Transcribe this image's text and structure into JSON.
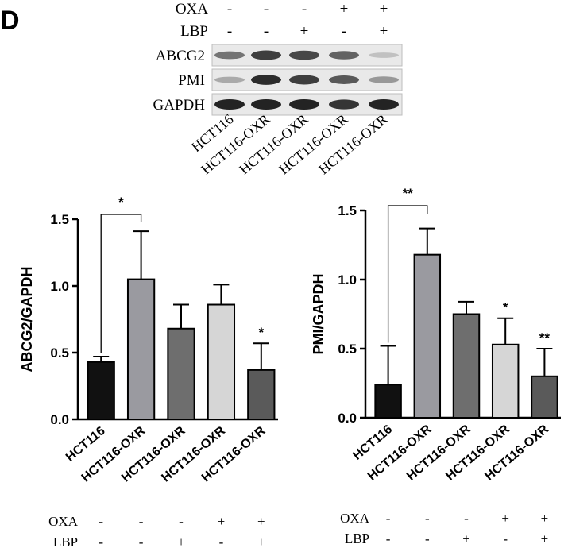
{
  "panel_label": "D",
  "blot": {
    "treatments": [
      {
        "name": "OXA",
        "signs": [
          "-",
          "-",
          "-",
          "+",
          "+"
        ]
      },
      {
        "name": "LBP",
        "signs": [
          "-",
          "-",
          "+",
          "-",
          "+"
        ]
      }
    ],
    "rows": [
      {
        "label": "ABCG2",
        "intensity": [
          0.55,
          0.85,
          0.8,
          0.65,
          0.12
        ]
      },
      {
        "label": "PMI",
        "intensity": [
          0.25,
          0.95,
          0.85,
          0.7,
          0.35
        ]
      },
      {
        "label": "GAPDH",
        "intensity": [
          1.0,
          1.0,
          1.0,
          0.9,
          1.0
        ]
      }
    ],
    "lanes": [
      "HCT116",
      "HCT116-OXR",
      "HCT116-OXR",
      "HCT116-OXR",
      "HCT116-OXR"
    ]
  },
  "chart_data": [
    {
      "type": "bar",
      "categories": [
        "HCT116",
        "HCT116-OXR",
        "HCT116-OXR",
        "HCT116-OXR",
        "HCT116-OXR"
      ],
      "values": [
        0.43,
        1.05,
        0.68,
        0.86,
        0.37
      ],
      "errors": [
        0.04,
        0.36,
        0.18,
        0.15,
        0.2
      ],
      "colors": [
        "#111111",
        "#9a9aa0",
        "#6e6e6e",
        "#d6d6d6",
        "#5a5a5a"
      ],
      "ylabel": "ABCG2/GAPDH",
      "ylim": [
        0,
        1.5
      ],
      "yticks": [
        "0.0",
        "0.5",
        "1.0",
        "1.5"
      ],
      "annotations": [
        {
          "text": "*",
          "type": "bracket",
          "from": 0,
          "to": 1
        },
        {
          "text": "*",
          "type": "above",
          "bar": 4
        }
      ],
      "treatments": [
        {
          "name": "OXA",
          "signs": [
            "-",
            "-",
            "-",
            "+",
            "+"
          ]
        },
        {
          "name": "LBP",
          "signs": [
            "-",
            "-",
            "+",
            "-",
            "+"
          ]
        }
      ]
    },
    {
      "type": "bar",
      "categories": [
        "HCT116",
        "HCT116-OXR",
        "HCT116-OXR",
        "HCT116-OXR",
        "HCT116-OXR"
      ],
      "values": [
        0.24,
        1.18,
        0.75,
        0.53,
        0.3
      ],
      "errors": [
        0.28,
        0.19,
        0.09,
        0.19,
        0.2
      ],
      "colors": [
        "#111111",
        "#9a9aa0",
        "#6e6e6e",
        "#d6d6d6",
        "#5a5a5a"
      ],
      "ylabel": "PMI/GAPDH",
      "ylim": [
        0,
        1.5
      ],
      "yticks": [
        "0.0",
        "0.5",
        "1.0",
        "1.5"
      ],
      "annotations": [
        {
          "text": "**",
          "type": "bracket",
          "from": 0,
          "to": 1
        },
        {
          "text": "*",
          "type": "above",
          "bar": 3
        },
        {
          "text": "**",
          "type": "above",
          "bar": 4
        }
      ],
      "treatments": [
        {
          "name": "OXA",
          "signs": [
            "-",
            "-",
            "-",
            "+",
            "+"
          ]
        },
        {
          "name": "LBP",
          "signs": [
            "-",
            "-",
            "+",
            "-",
            "+"
          ]
        }
      ]
    }
  ]
}
